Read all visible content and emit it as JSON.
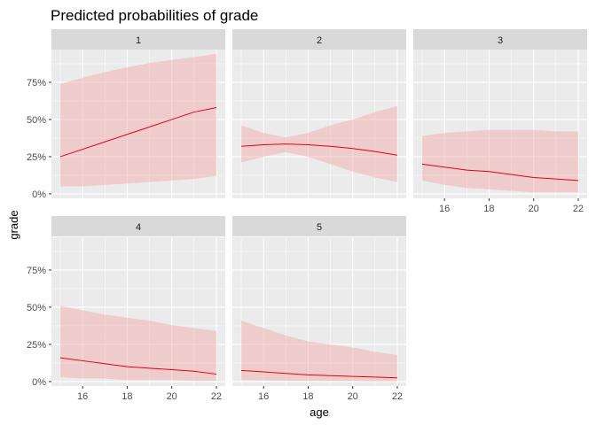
{
  "chart_data": {
    "type": "line",
    "title": "Predicted probabilities of grade",
    "xlabel": "age",
    "ylabel": "grade",
    "xlim": [
      14.6,
      22.4
    ],
    "ylim": [
      -0.03,
      0.97
    ],
    "x_ticks": [
      16,
      18,
      20,
      22
    ],
    "x_tick_labels": [
      "16",
      "18",
      "20",
      "22"
    ],
    "y_ticks": [
      0,
      0.25,
      0.5,
      0.75
    ],
    "y_tick_labels": [
      "0%",
      "25%",
      "50%",
      "75%"
    ],
    "grid": true,
    "colors": {
      "line": "#e8000b",
      "ribbon": "#f4a6a6",
      "panel_bg": "#ebebeb",
      "strip_bg": "#d9d9d9",
      "grid": "#ffffff"
    },
    "facets": [
      {
        "label": "1",
        "x": [
          15,
          16,
          17,
          18,
          19,
          20,
          21,
          22
        ],
        "y": [
          0.25,
          0.3,
          0.35,
          0.4,
          0.45,
          0.5,
          0.55,
          0.58
        ],
        "lower": [
          0.05,
          0.05,
          0.06,
          0.07,
          0.08,
          0.09,
          0.1,
          0.12
        ],
        "upper": [
          0.74,
          0.78,
          0.82,
          0.85,
          0.88,
          0.9,
          0.92,
          0.94
        ]
      },
      {
        "label": "2",
        "x": [
          15,
          16,
          17,
          18,
          19,
          20,
          21,
          22
        ],
        "y": [
          0.32,
          0.33,
          0.335,
          0.33,
          0.32,
          0.305,
          0.285,
          0.26
        ],
        "lower": [
          0.21,
          0.25,
          0.28,
          0.25,
          0.2,
          0.15,
          0.11,
          0.08
        ],
        "upper": [
          0.46,
          0.41,
          0.38,
          0.41,
          0.46,
          0.5,
          0.55,
          0.59
        ]
      },
      {
        "label": "3",
        "x": [
          15,
          16,
          17,
          18,
          19,
          20,
          21,
          22
        ],
        "y": [
          0.2,
          0.18,
          0.16,
          0.15,
          0.13,
          0.11,
          0.1,
          0.09
        ],
        "lower": [
          0.09,
          0.06,
          0.04,
          0.03,
          0.02,
          0.01,
          0.01,
          0.01
        ],
        "upper": [
          0.39,
          0.41,
          0.42,
          0.43,
          0.43,
          0.43,
          0.42,
          0.42
        ]
      },
      {
        "label": "4",
        "x": [
          15,
          16,
          17,
          18,
          19,
          20,
          21,
          22
        ],
        "y": [
          0.16,
          0.14,
          0.12,
          0.1,
          0.09,
          0.08,
          0.07,
          0.05
        ],
        "lower": [
          0.03,
          0.02,
          0.02,
          0.01,
          0.01,
          0.01,
          0.005,
          0.005
        ],
        "upper": [
          0.51,
          0.48,
          0.45,
          0.43,
          0.41,
          0.38,
          0.36,
          0.34
        ]
      },
      {
        "label": "5",
        "x": [
          15,
          16,
          17,
          18,
          19,
          20,
          21,
          22
        ],
        "y": [
          0.075,
          0.065,
          0.055,
          0.045,
          0.04,
          0.035,
          0.03,
          0.025
        ],
        "lower": [
          0.01,
          0.008,
          0.006,
          0.005,
          0.004,
          0.003,
          0.002,
          0.002
        ],
        "upper": [
          0.41,
          0.36,
          0.31,
          0.27,
          0.25,
          0.23,
          0.2,
          0.18
        ]
      }
    ]
  }
}
